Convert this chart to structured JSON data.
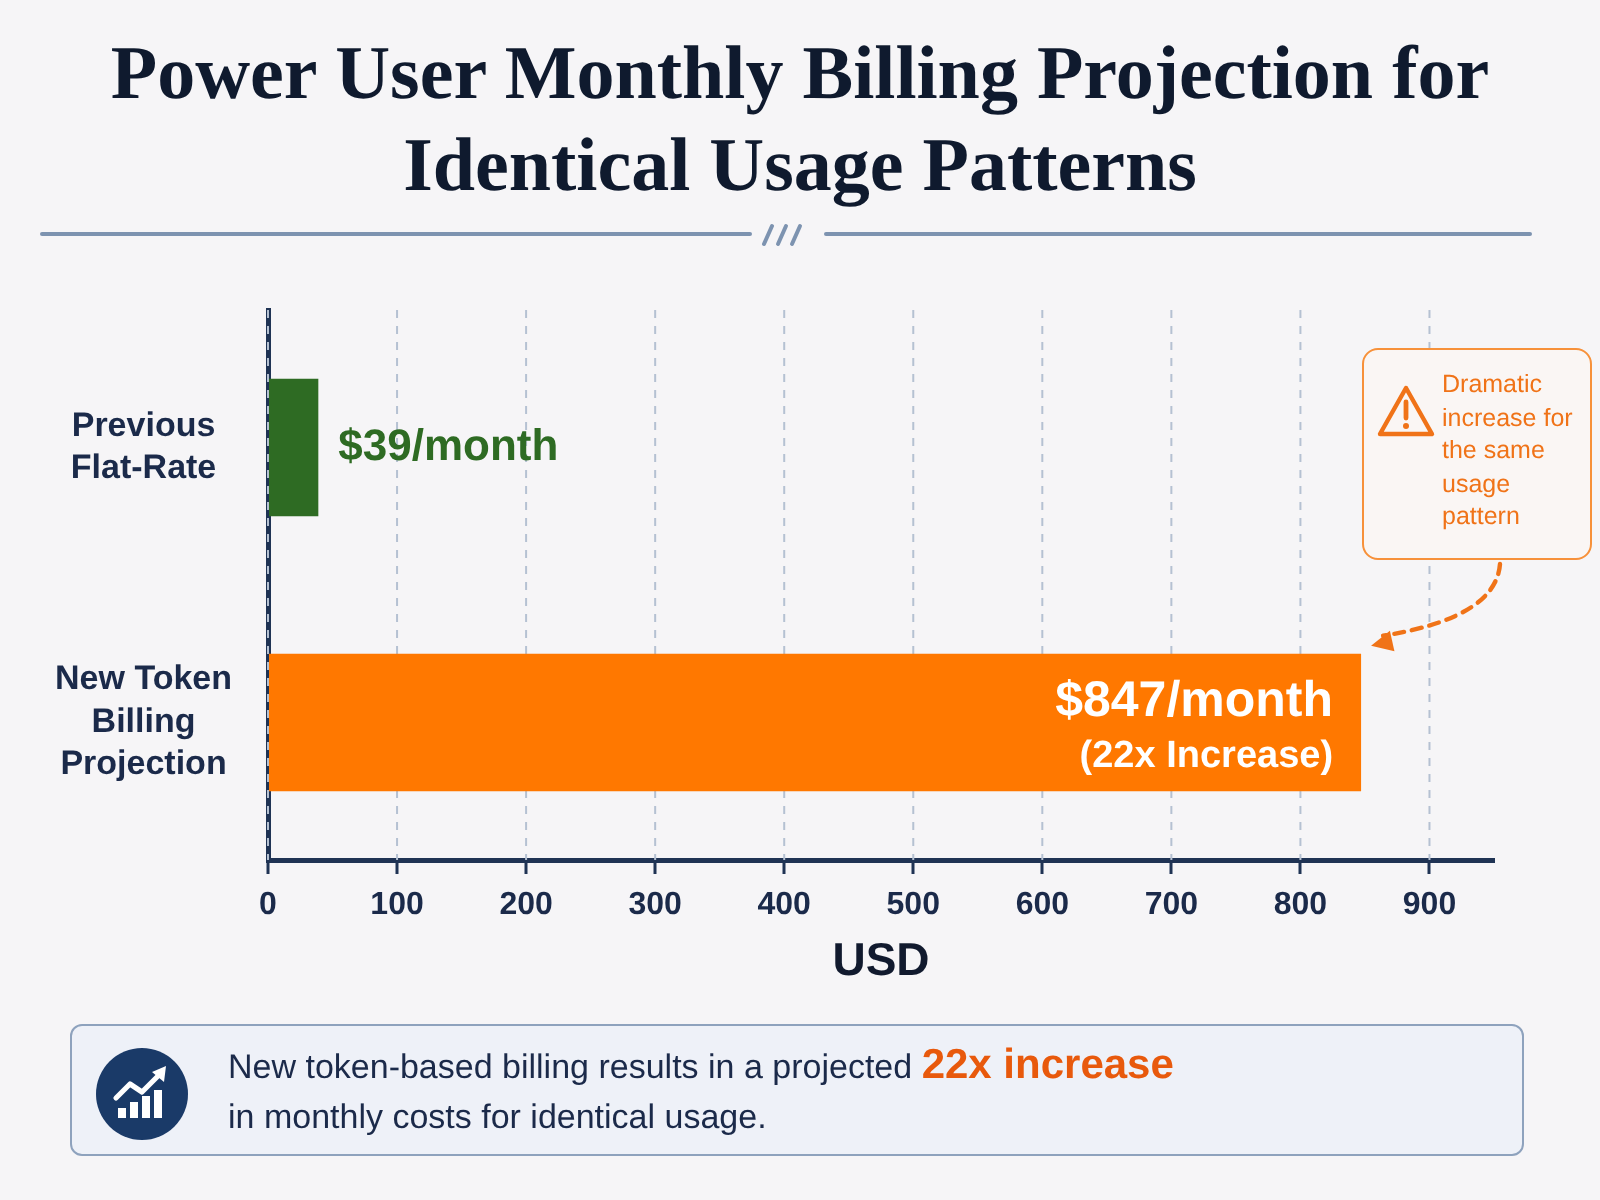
{
  "chart_data": {
    "type": "bar",
    "orientation": "horizontal",
    "title": "Power User Monthly Billing Projection for Identical Usage Patterns",
    "xlabel": "USD",
    "categories": [
      "Previous Flat-Rate",
      "New Token Billing Projection"
    ],
    "values": [
      39,
      847
    ],
    "colors": [
      "#2e6b23",
      "#ff7800"
    ],
    "value_labels": [
      "$39/month",
      "$847/month"
    ],
    "xlim": [
      0,
      950
    ],
    "xticks": [
      0,
      100,
      200,
      300,
      400,
      500,
      600,
      700,
      800,
      900
    ],
    "grid": "x",
    "annotations": [
      {
        "text": "(22x Increase)",
        "x": 847,
        "y": "New Token Billing Projection"
      },
      "Dramatic increase for the same usage pattern",
      "New token-based billing results in a projected",
      "22x increase",
      "in monthly costs for identical usage."
    ]
  }
}
